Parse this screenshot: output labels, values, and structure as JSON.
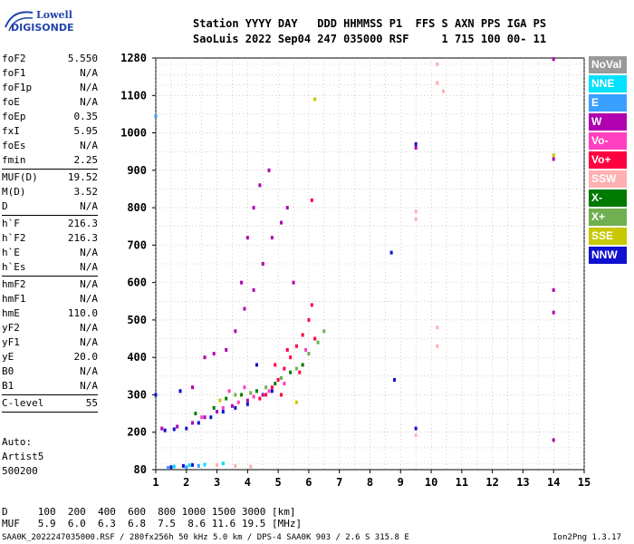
{
  "logo": {
    "line1": "Lowell",
    "line2": "DIGISONDE"
  },
  "header": {
    "line1": "Station YYYY DAY   DDD HHMMSS P1  FFS S AXN PPS IGA PS",
    "line2": "SaoLuis 2022 Sep04 247 035000 RSF     1 715 100 00- 11"
  },
  "params": [
    {
      "k": "foF2",
      "v": "5.550"
    },
    {
      "k": "foF1",
      "v": "N/A"
    },
    {
      "k": "foF1p",
      "v": "N/A"
    },
    {
      "k": "foE",
      "v": "N/A"
    },
    {
      "k": "foEp",
      "v": "0.35"
    },
    {
      "k": "fxI",
      "v": "5.95"
    },
    {
      "k": "foEs",
      "v": "N/A"
    },
    {
      "k": "fmin",
      "v": "2.25"
    },
    {
      "sep": true
    },
    {
      "k": "MUF(D)",
      "v": "19.52"
    },
    {
      "k": "M(D)",
      "v": "3.52"
    },
    {
      "k": "D",
      "v": "N/A"
    },
    {
      "sep": true
    },
    {
      "k": "h`F",
      "v": "216.3"
    },
    {
      "k": "h`F2",
      "v": "216.3"
    },
    {
      "k": "h`E",
      "v": "N/A"
    },
    {
      "k": "h`Es",
      "v": "N/A"
    },
    {
      "sep": true
    },
    {
      "k": "hmF2",
      "v": "N/A"
    },
    {
      "k": "hmF1",
      "v": "N/A"
    },
    {
      "k": "hmE",
      "v": "110.0"
    },
    {
      "k": "yF2",
      "v": "N/A"
    },
    {
      "k": "yF1",
      "v": "N/A"
    },
    {
      "k": "yE",
      "v": "20.0"
    },
    {
      "k": "B0",
      "v": "N/A"
    },
    {
      "k": "B1",
      "v": "N/A"
    },
    {
      "sep": true
    },
    {
      "k": "C-level",
      "v": "55"
    },
    {
      "sep": true
    }
  ],
  "auto": {
    "l1": "Auto:",
    "l2": "Artist5",
    "l3": "500200"
  },
  "dmuf": {
    "d_line": "D     100  200  400  600  800 1000 1500 3000 [km]",
    "muf_line": "MUF   5.9  6.0  6.3  6.8  7.5  8.6 11.6 19.5 [MHz]"
  },
  "footer": "SAA0K_2022247035000.RSF / 280fx256h 50 kHz 5.0 km / DPS-4 SAA0K 903 / 2.6 S 315.8 E",
  "version": "Ion2Png 1.3.17",
  "legend": [
    {
      "label": "NoVal",
      "color": "#9a9a9a"
    },
    {
      "label": "NNE",
      "color": "#00e0ff"
    },
    {
      "label": "E",
      "color": "#3aa0ff"
    },
    {
      "label": "W",
      "color": "#b000b0"
    },
    {
      "label": "Vo-",
      "color": "#ff40c0"
    },
    {
      "label": "Vo+",
      "color": "#ff0040"
    },
    {
      "label": "SSW",
      "color": "#ffb0b0"
    },
    {
      "label": "X-",
      "color": "#007a00"
    },
    {
      "label": "X+",
      "color": "#70b050"
    },
    {
      "label": "SSE",
      "color": "#c8c800"
    },
    {
      "label": "NNW",
      "color": "#1010d0"
    }
  ],
  "chart_data": {
    "type": "scatter",
    "xlabel": "",
    "ylabel": "",
    "xlim": [
      1,
      15
    ],
    "ylim": [
      80,
      1280
    ],
    "x_ticks": [
      "1",
      "2",
      "3",
      "4",
      "5",
      "6",
      "7",
      "8",
      "9",
      "10",
      "11",
      "12",
      "13",
      "14",
      "15"
    ],
    "y_ticks": [
      "80",
      "200",
      "300",
      "400",
      "500",
      "600",
      "700",
      "800",
      "900",
      "1000",
      "1100",
      "1280"
    ],
    "y_tick_values": [
      80,
      200,
      300,
      400,
      500,
      600,
      700,
      800,
      900,
      1000,
      1100,
      1280
    ],
    "grid": true,
    "series": [
      {
        "name": "W",
        "color": "#b000b0",
        "points": [
          [
            1.2,
            210
          ],
          [
            1.7,
            215
          ],
          [
            2.2,
            225
          ],
          [
            2.6,
            240
          ],
          [
            3,
            255
          ],
          [
            3.5,
            270
          ],
          [
            4,
            285
          ],
          [
            4.5,
            300
          ],
          [
            1.8,
            310
          ],
          [
            2.2,
            320
          ],
          [
            3.3,
            420
          ],
          [
            3.6,
            470
          ],
          [
            3.9,
            530
          ],
          [
            4.2,
            580
          ],
          [
            4.5,
            650
          ],
          [
            4.8,
            720
          ],
          [
            5.1,
            760
          ],
          [
            5.3,
            800
          ],
          [
            2.6,
            400
          ],
          [
            2.9,
            410
          ],
          [
            4.2,
            800
          ],
          [
            4.4,
            860
          ],
          [
            4.7,
            900
          ],
          [
            3.8,
            600
          ],
          [
            9.5,
            960
          ],
          [
            14,
            520
          ],
          [
            14,
            580
          ],
          [
            14,
            930
          ],
          [
            14,
            175
          ],
          [
            14,
            1275
          ],
          [
            4,
            720
          ],
          [
            5.5,
            600
          ]
        ]
      },
      {
        "name": "NNW",
        "color": "#1010d0",
        "points": [
          [
            1.3,
            205
          ],
          [
            1.6,
            208
          ],
          [
            2,
            210
          ],
          [
            2.4,
            225
          ],
          [
            2.8,
            240
          ],
          [
            3.2,
            255
          ],
          [
            3.6,
            265
          ],
          [
            4,
            275
          ],
          [
            1.5,
            88
          ],
          [
            1.9,
            92
          ],
          [
            2.2,
            95
          ],
          [
            1,
            300
          ],
          [
            1.8,
            310
          ],
          [
            9.5,
            210
          ],
          [
            9.5,
            970
          ],
          [
            8.7,
            680
          ],
          [
            8.8,
            340
          ],
          [
            4.3,
            380
          ],
          [
            4.8,
            310
          ]
        ]
      },
      {
        "name": "Vo+",
        "color": "#ff0040",
        "points": [
          [
            4.6,
            300
          ],
          [
            4.8,
            320
          ],
          [
            5,
            340
          ],
          [
            5.2,
            370
          ],
          [
            5.4,
            400
          ],
          [
            5.6,
            430
          ],
          [
            5.8,
            460
          ],
          [
            6,
            500
          ],
          [
            6.1,
            540
          ],
          [
            4.9,
            380
          ],
          [
            5.3,
            420
          ],
          [
            5.7,
            360
          ],
          [
            6.2,
            450
          ],
          [
            5.1,
            300
          ],
          [
            4.4,
            290
          ],
          [
            6.1,
            820
          ]
        ]
      },
      {
        "name": "Vo-",
        "color": "#ff40c0",
        "points": [
          [
            3.2,
            265
          ],
          [
            3.7,
            280
          ],
          [
            4.2,
            295
          ],
          [
            4.7,
            310
          ],
          [
            5.2,
            330
          ],
          [
            2.5,
            240
          ],
          [
            3.4,
            310
          ],
          [
            3.9,
            320
          ],
          [
            5.9,
            420
          ]
        ]
      },
      {
        "name": "X-",
        "color": "#007a00",
        "points": [
          [
            3.3,
            290
          ],
          [
            3.8,
            300
          ],
          [
            4.3,
            310
          ],
          [
            4.9,
            330
          ],
          [
            5.4,
            360
          ],
          [
            2.3,
            250
          ],
          [
            2.9,
            265
          ],
          [
            5.8,
            380
          ]
        ]
      },
      {
        "name": "X+",
        "color": "#70b050",
        "points": [
          [
            3.6,
            300
          ],
          [
            4.1,
            305
          ],
          [
            4.6,
            320
          ],
          [
            5.1,
            345
          ],
          [
            5.6,
            370
          ],
          [
            6,
            410
          ],
          [
            6.3,
            440
          ],
          [
            6.5,
            470
          ]
        ]
      },
      {
        "name": "SSW",
        "color": "#ffb0b0",
        "points": [
          [
            10.2,
            1250
          ],
          [
            10.2,
            1160
          ],
          [
            10.4,
            1120
          ],
          [
            9.5,
            790
          ],
          [
            9.5,
            770
          ],
          [
            10.2,
            480
          ],
          [
            10.2,
            430
          ],
          [
            9.5,
            190
          ],
          [
            4.1,
            90
          ],
          [
            3.6,
            92
          ],
          [
            3,
            95
          ]
        ]
      },
      {
        "name": "SSE",
        "color": "#c8c800",
        "points": [
          [
            6.2,
            1090
          ],
          [
            5.6,
            280
          ],
          [
            14,
            940
          ],
          [
            3.1,
            285
          ]
        ]
      },
      {
        "name": "NNE",
        "color": "#00e0ff",
        "points": [
          [
            1.6,
            90
          ],
          [
            2.1,
            94
          ],
          [
            2.6,
            96
          ],
          [
            3.2,
            100
          ]
        ]
      },
      {
        "name": "E",
        "color": "#3aa0ff",
        "points": [
          [
            1,
            1045
          ],
          [
            1.4,
            86
          ],
          [
            2,
            88
          ],
          [
            2.4,
            92
          ]
        ]
      }
    ]
  }
}
